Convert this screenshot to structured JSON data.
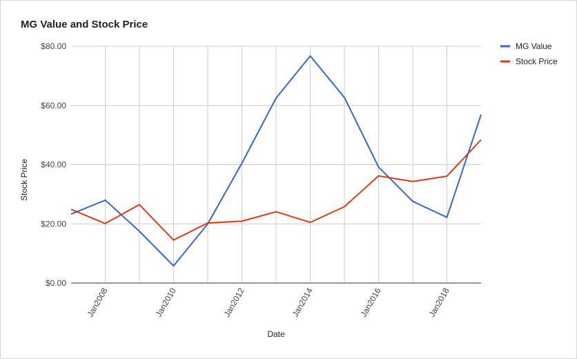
{
  "chart_data": {
    "type": "line",
    "title": "MG Value and Stock Price",
    "xlabel": "Date",
    "ylabel": "Stock Price",
    "x": [
      2007,
      2008,
      2009,
      2010,
      2011,
      2012,
      2013,
      2014,
      2015,
      2016,
      2017,
      2018,
      2019
    ],
    "x_tick_values": [
      2008,
      2010,
      2012,
      2014,
      2016,
      2018
    ],
    "x_tick_labels": [
      "Jan2008",
      "Jan2010",
      "Jan2012",
      "Jan2014",
      "Jan2016",
      "Jan2018"
    ],
    "xlim": [
      2007,
      2019
    ],
    "ylim": [
      0,
      80
    ],
    "y_ticks": [
      0,
      20,
      40,
      60,
      80
    ],
    "y_tick_labels": [
      "$0.00",
      "$20.00",
      "$40.00",
      "$60.00",
      "$80.00"
    ],
    "series": [
      {
        "name": "MG Value",
        "color": "#3366cc",
        "values": [
          23.3,
          28.0,
          17.5,
          5.8,
          20.0,
          40.5,
          62.5,
          76.7,
          62.7,
          39.2,
          27.6,
          22.2,
          56.9
        ]
      },
      {
        "name": "Stock Price",
        "color": "#dc3912",
        "values": [
          24.9,
          20.1,
          26.5,
          14.5,
          20.3,
          20.9,
          24.1,
          20.5,
          25.8,
          36.2,
          34.3,
          36.1,
          48.4
        ]
      }
    ],
    "grid": true,
    "legend_position": "right"
  }
}
